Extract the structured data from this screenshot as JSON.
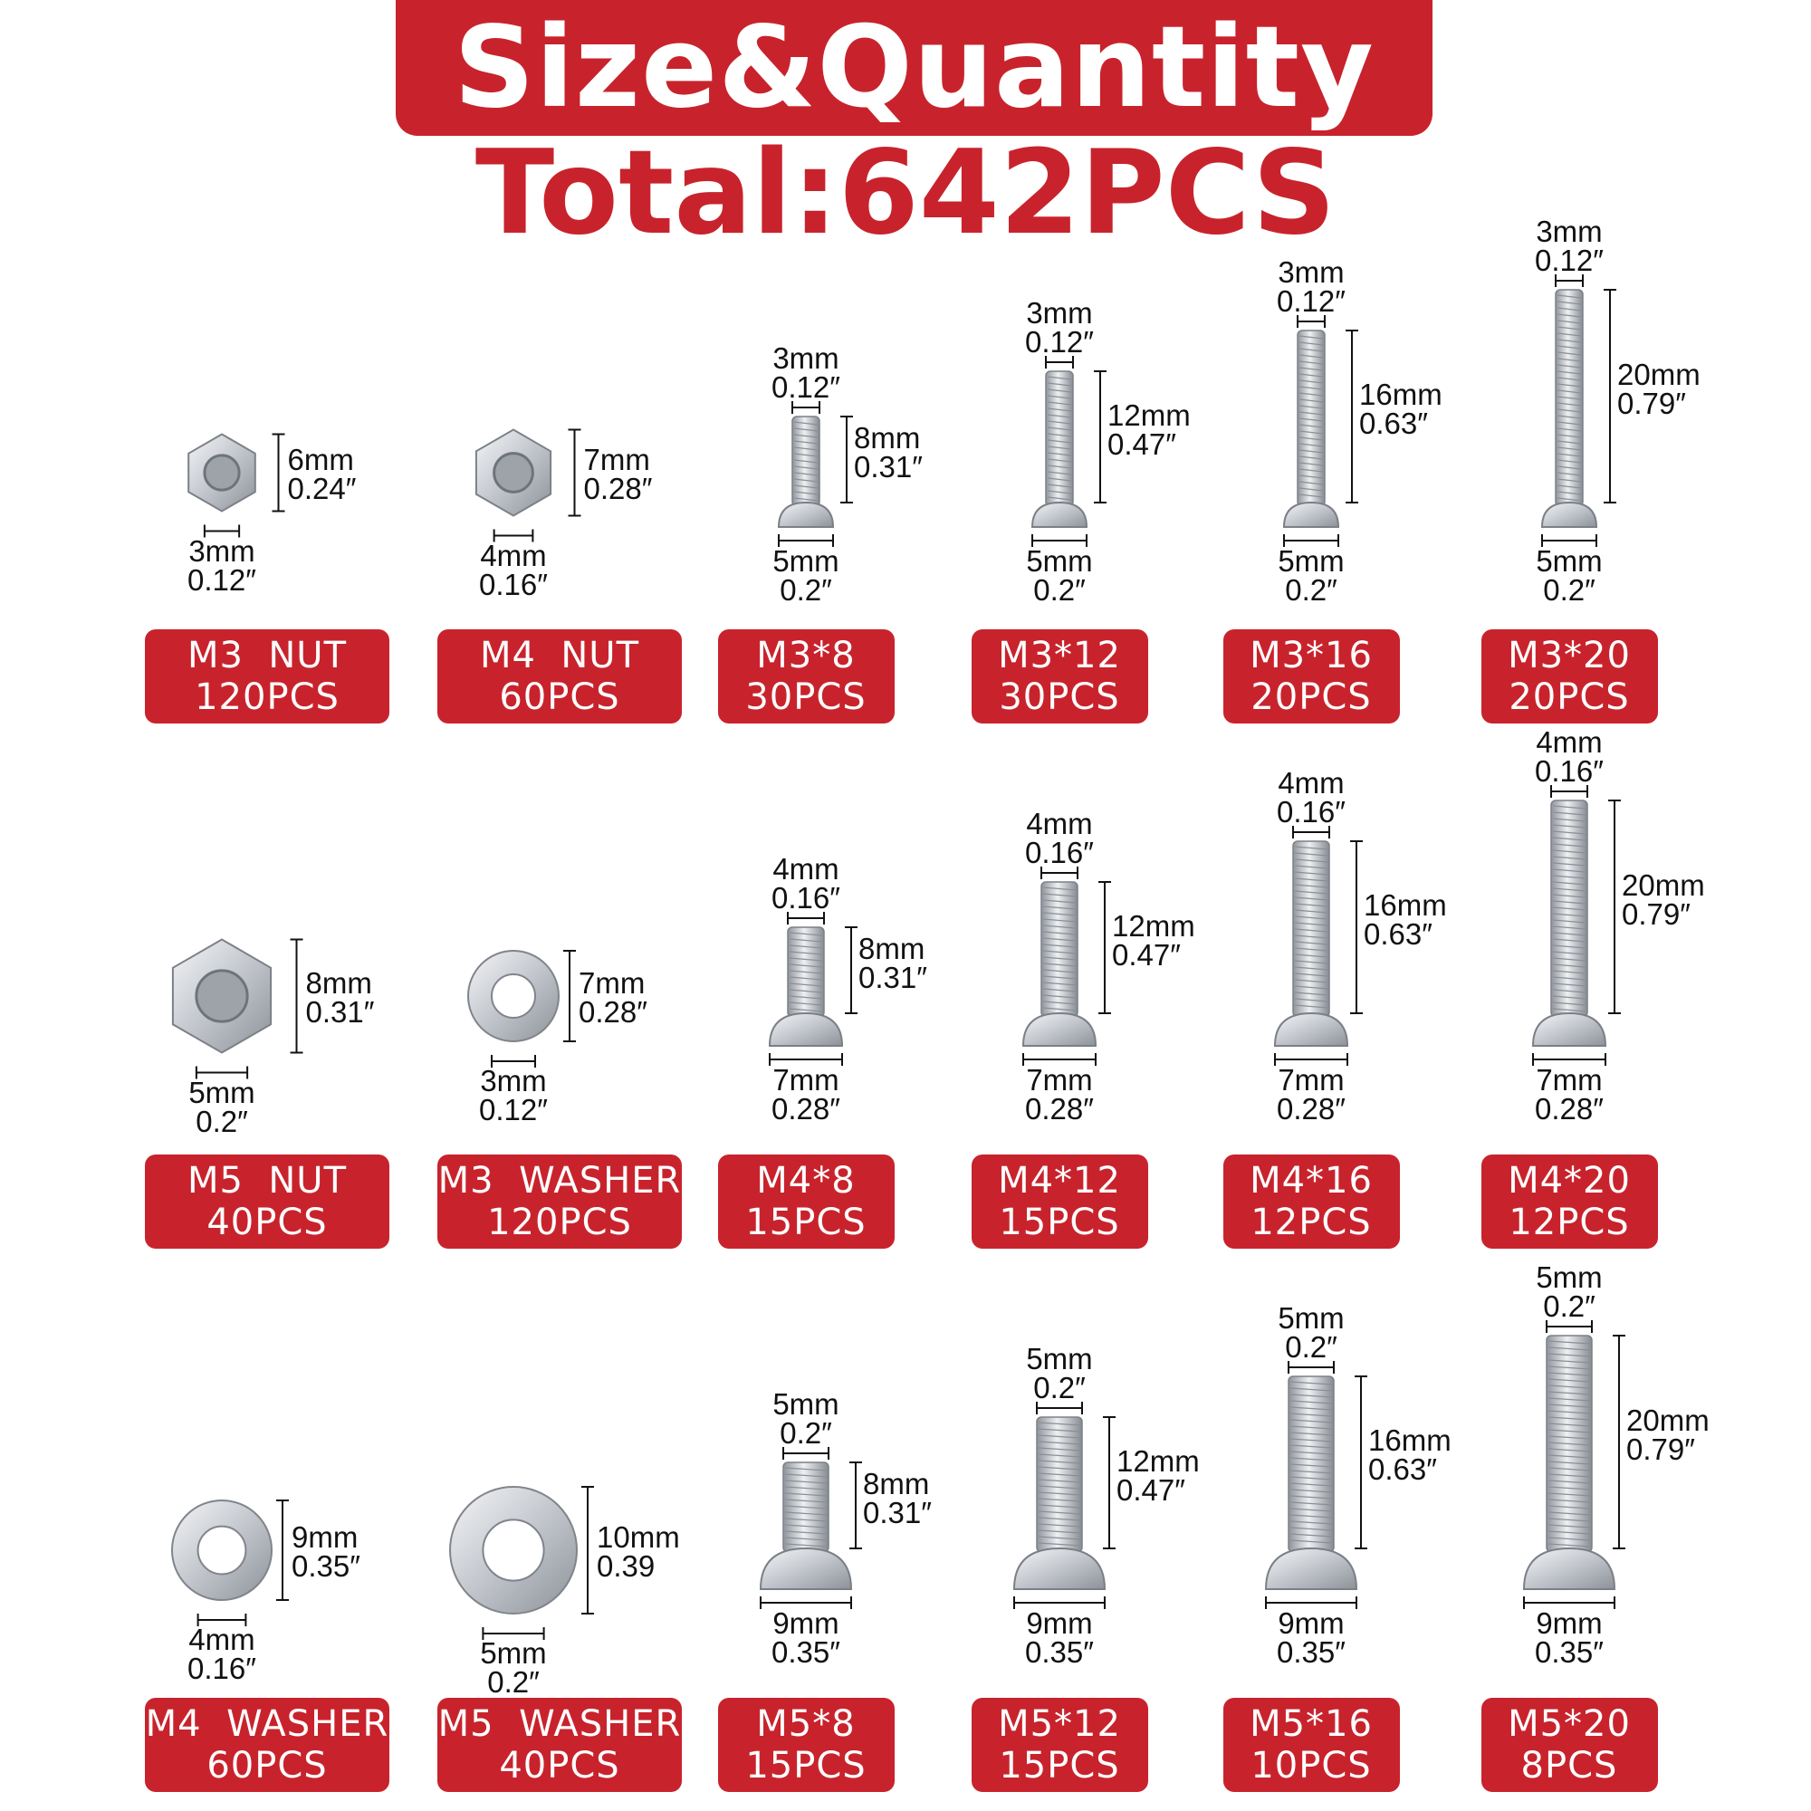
{
  "title": "Size&Quantity",
  "total": "Total:642PCS",
  "colors": {
    "accent": "#c8232c",
    "text_on_accent": "#ffffff",
    "metal": "#c9ccd1"
  },
  "items": [
    {
      "name": "M3  NUT",
      "qty": "120PCS",
      "kind": "nut",
      "dims": [
        {
          "mm": "6mm",
          "in": "0.24″"
        },
        {
          "mm": "3mm",
          "in": "0.12″"
        }
      ]
    },
    {
      "name": "M4  NUT",
      "qty": "60PCS",
      "kind": "nut",
      "dims": [
        {
          "mm": "7mm",
          "in": "0.28″"
        },
        {
          "mm": "4mm",
          "in": "0.16″"
        }
      ]
    },
    {
      "name": "M3*8",
      "qty": "30PCS",
      "kind": "screw",
      "dims": [
        {
          "mm": "3mm",
          "in": "0.12″"
        },
        {
          "mm": "8mm",
          "in": "0.31″"
        },
        {
          "mm": "5mm",
          "in": "0.2″"
        }
      ]
    },
    {
      "name": "M3*12",
      "qty": "30PCS",
      "kind": "screw",
      "dims": [
        {
          "mm": "3mm",
          "in": "0.12″"
        },
        {
          "mm": "12mm",
          "in": "0.47″"
        },
        {
          "mm": "5mm",
          "in": "0.2″"
        }
      ]
    },
    {
      "name": "M3*16",
      "qty": "20PCS",
      "kind": "screw",
      "dims": [
        {
          "mm": "3mm",
          "in": "0.12″"
        },
        {
          "mm": "16mm",
          "in": "0.63″"
        },
        {
          "mm": "5mm",
          "in": "0.2″"
        }
      ]
    },
    {
      "name": "M3*20",
      "qty": "20PCS",
      "kind": "screw",
      "dims": [
        {
          "mm": "3mm",
          "in": "0.12″"
        },
        {
          "mm": "20mm",
          "in": "0.79″"
        },
        {
          "mm": "5mm",
          "in": "0.2″"
        }
      ]
    },
    {
      "name": "M5  NUT",
      "qty": "40PCS",
      "kind": "nut",
      "dims": [
        {
          "mm": "8mm",
          "in": "0.31″"
        },
        {
          "mm": "5mm",
          "in": "0.2″"
        }
      ]
    },
    {
      "name": "M3  WASHER",
      "qty": "120PCS",
      "kind": "washer",
      "dims": [
        {
          "mm": "7mm",
          "in": "0.28″"
        },
        {
          "mm": "3mm",
          "in": "0.12″"
        }
      ]
    },
    {
      "name": "M4*8",
      "qty": "15PCS",
      "kind": "screw",
      "dims": [
        {
          "mm": "4mm",
          "in": "0.16″"
        },
        {
          "mm": "8mm",
          "in": "0.31″"
        },
        {
          "mm": "7mm",
          "in": "0.28″"
        }
      ]
    },
    {
      "name": "M4*12",
      "qty": "15PCS",
      "kind": "screw",
      "dims": [
        {
          "mm": "4mm",
          "in": "0.16″"
        },
        {
          "mm": "12mm",
          "in": "0.47″"
        },
        {
          "mm": "7mm",
          "in": "0.28″"
        }
      ]
    },
    {
      "name": "M4*16",
      "qty": "12PCS",
      "kind": "screw",
      "dims": [
        {
          "mm": "4mm",
          "in": "0.16″"
        },
        {
          "mm": "16mm",
          "in": "0.63″"
        },
        {
          "mm": "7mm",
          "in": "0.28″"
        }
      ]
    },
    {
      "name": "M4*20",
      "qty": "12PCS",
      "kind": "screw",
      "dims": [
        {
          "mm": "4mm",
          "in": "0.16″"
        },
        {
          "mm": "20mm",
          "in": "0.79″"
        },
        {
          "mm": "7mm",
          "in": "0.28″"
        }
      ]
    },
    {
      "name": "M4  WASHER",
      "qty": "60PCS",
      "kind": "washer",
      "dims": [
        {
          "mm": "9mm",
          "in": "0.35″"
        },
        {
          "mm": "4mm",
          "in": "0.16″"
        }
      ]
    },
    {
      "name": "M5  WASHER",
      "qty": "40PCS",
      "kind": "washer",
      "dims": [
        {
          "mm": "10mm",
          "in": "0.39"
        },
        {
          "mm": "5mm",
          "in": "0.2″"
        }
      ]
    },
    {
      "name": "M5*8",
      "qty": "15PCS",
      "kind": "screw",
      "dims": [
        {
          "mm": "5mm",
          "in": "0.2″"
        },
        {
          "mm": "8mm",
          "in": "0.31″"
        },
        {
          "mm": "9mm",
          "in": "0.35″"
        }
      ]
    },
    {
      "name": "M5*12",
      "qty": "15PCS",
      "kind": "screw",
      "dims": [
        {
          "mm": "5mm",
          "in": "0.2″"
        },
        {
          "mm": "12mm",
          "in": "0.47″"
        },
        {
          "mm": "9mm",
          "in": "0.35″"
        }
      ]
    },
    {
      "name": "M5*16",
      "qty": "10PCS",
      "kind": "screw",
      "dims": [
        {
          "mm": "5mm",
          "in": "0.2″"
        },
        {
          "mm": "16mm",
          "in": "0.63″"
        },
        {
          "mm": "9mm",
          "in": "0.35″"
        }
      ]
    },
    {
      "name": "M5*20",
      "qty": "8PCS",
      "kind": "screw",
      "dims": [
        {
          "mm": "5mm",
          "in": "0.2″"
        },
        {
          "mm": "20mm",
          "in": "0.79″"
        },
        {
          "mm": "9mm",
          "in": "0.35″"
        }
      ]
    }
  ]
}
